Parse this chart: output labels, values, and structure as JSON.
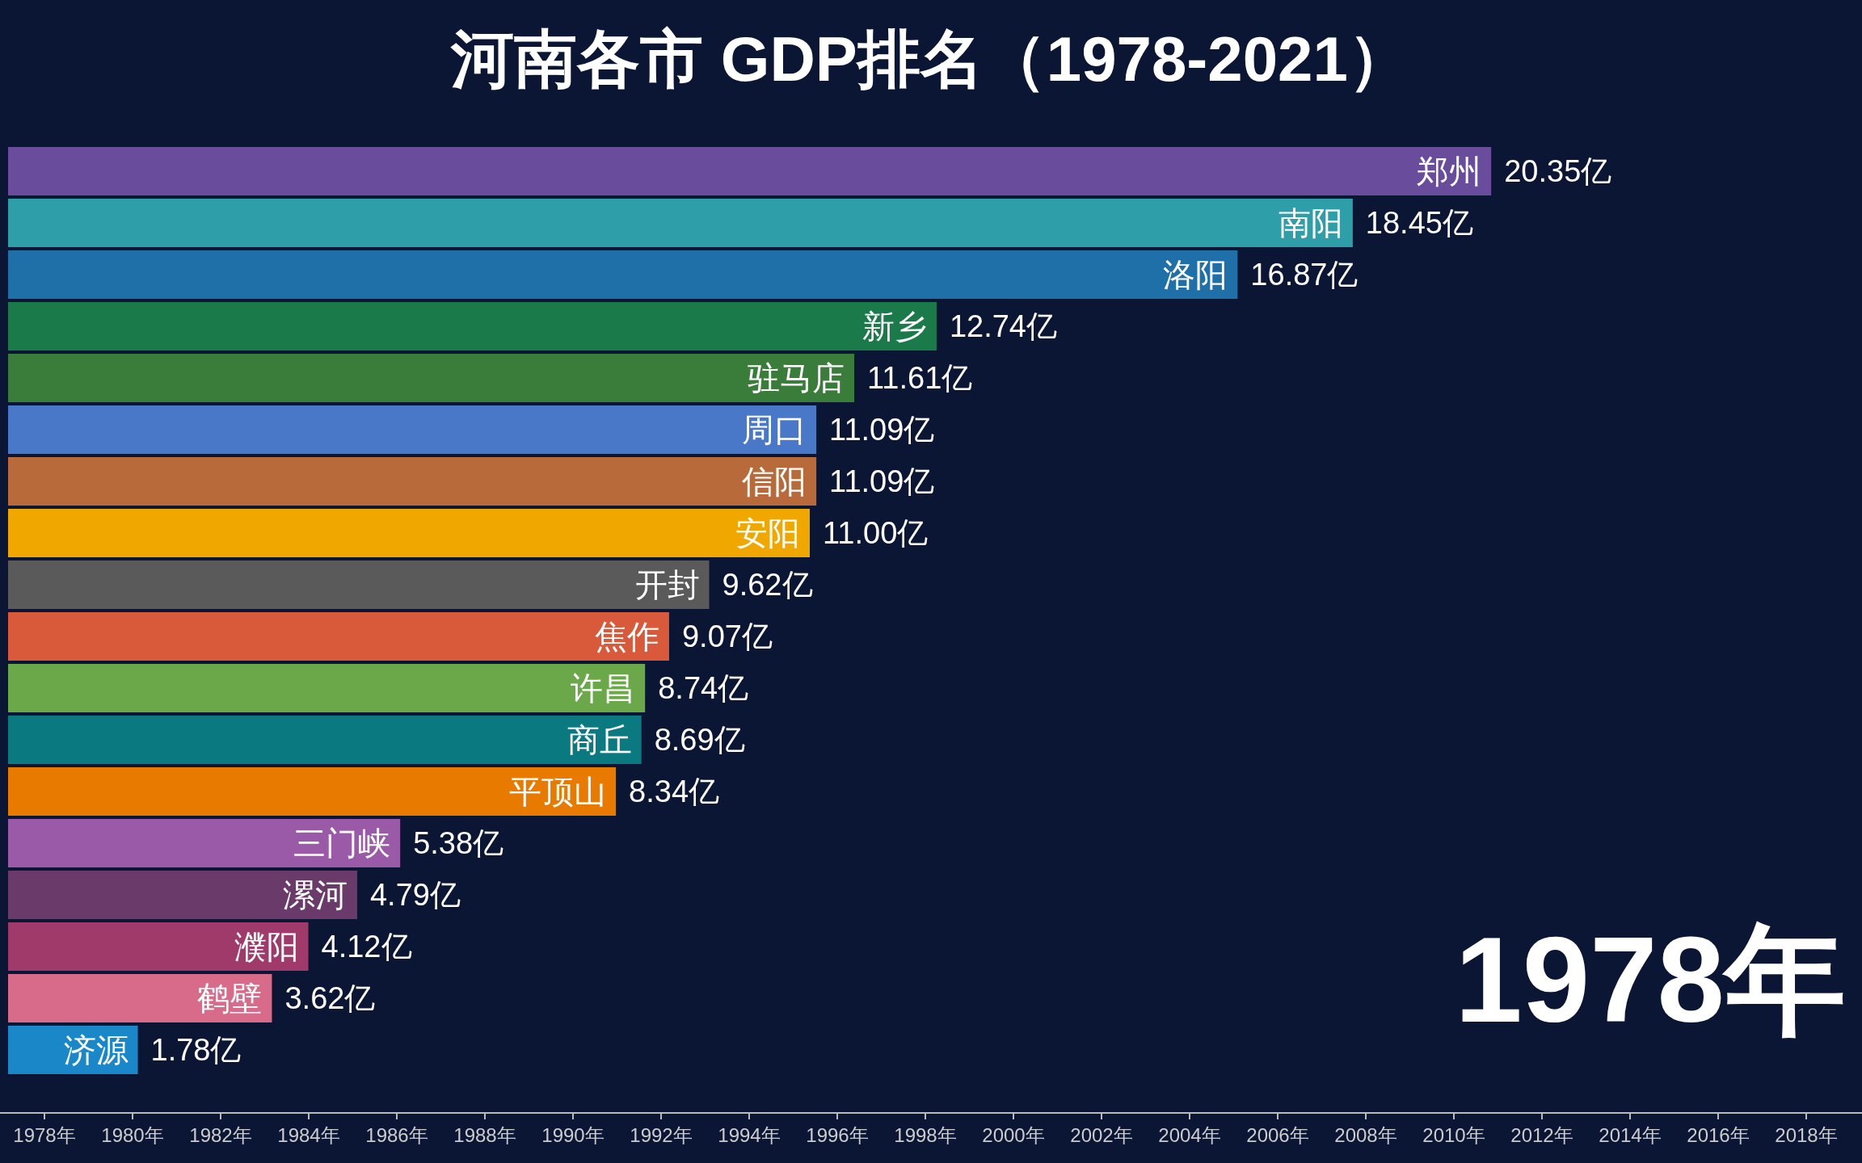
{
  "chart_data": {
    "type": "bar",
    "orientation": "horizontal",
    "title": "河南各市 GDP排名（1978-2021）",
    "categories": [
      "郑州",
      "南阳",
      "洛阳",
      "新乡",
      "驻马店",
      "周口",
      "信阳",
      "安阳",
      "开封",
      "焦作",
      "许昌",
      "商丘",
      "平顶山",
      "三门峡",
      "漯河",
      "濮阳",
      "鹤壁",
      "济源"
    ],
    "values": [
      20.35,
      18.45,
      16.87,
      12.74,
      11.61,
      11.09,
      11.09,
      11.0,
      9.62,
      9.07,
      8.74,
      8.69,
      8.34,
      5.38,
      4.79,
      4.12,
      3.62,
      1.78
    ],
    "value_labels": [
      "20.35亿",
      "18.45亿",
      "16.87亿",
      "12.74亿",
      "11.61亿",
      "11.09亿",
      "11.09亿",
      "11.00亿",
      "9.62亿",
      "9.07亿",
      "8.74亿",
      "8.69亿",
      "8.34亿",
      "5.38亿",
      "4.79亿",
      "4.12亿",
      "3.62亿",
      "1.78亿"
    ],
    "colors": [
      "#6a4c9c",
      "#2e9ea8",
      "#1f6fa8",
      "#1a7a4a",
      "#3a7d3a",
      "#4a78c8",
      "#b86a3a",
      "#f0a800",
      "#5a5a5a",
      "#d85a3a",
      "#6aa84a",
      "#0a7a80",
      "#e87a00",
      "#9a5aa8",
      "#6a3a6a",
      "#a03a6a",
      "#d86a8a",
      "#1a88c8"
    ],
    "annotations": [
      "1978年",
      "1978年",
      "1980年",
      "1982年",
      "1984年",
      "1986年",
      "1988年",
      "1990年",
      "1992年",
      "1994年",
      "1996年",
      "1998年",
      "2000年",
      "2002年",
      "2004年",
      "2006年",
      "2008年",
      "2010年",
      "2012年",
      "2014年",
      "2016年",
      "2018年"
    ]
  }
}
